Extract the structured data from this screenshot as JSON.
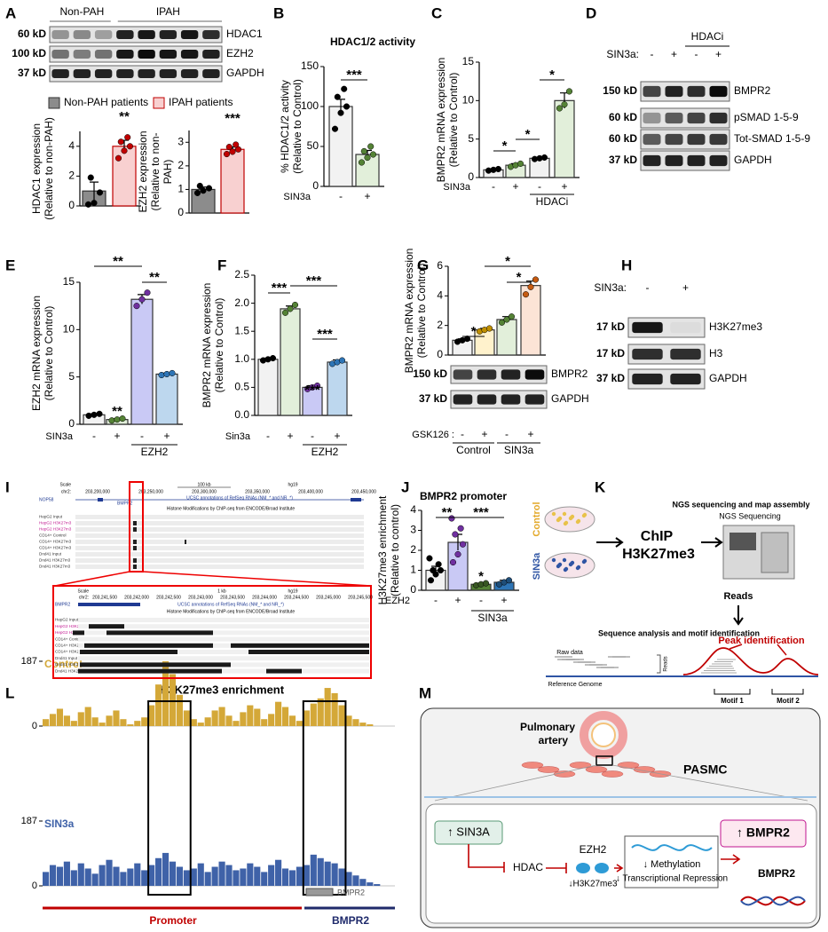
{
  "panel_letters": [
    "A",
    "B",
    "C",
    "D",
    "E",
    "F",
    "G",
    "H",
    "I",
    "J",
    "K",
    "L",
    "M"
  ],
  "chart_data": [
    {
      "type": "bar",
      "ylabel": [
        "HDAC1 expression",
        "(Relative to non-PAH)"
      ],
      "values": [
        1.0,
        4.0
      ],
      "errors": [
        0.6,
        0.4
      ],
      "points": [
        [
          0.1,
          0.2,
          0.9,
          1.9
        ],
        [
          3.2,
          3.7,
          4.0,
          4.3,
          4.6
        ]
      ],
      "colors": [
        "#8c8c8c",
        "#f8d0d0"
      ],
      "edge_colors": [
        "#333333",
        "#c00000"
      ],
      "point_colors": [
        "#000000",
        "#c00000"
      ],
      "ylim": [
        0,
        5
      ],
      "yticks": [
        0,
        2,
        4
      ],
      "annotations": [
        "**"
      ],
      "legend": [
        "Non-PAH patients",
        "IPAH patients"
      ]
    },
    {
      "type": "bar",
      "ylabel": [
        "EZH2 expression",
        "(Relative to non-",
        "PAH)"
      ],
      "values": [
        1.0,
        2.7
      ],
      "errors": [
        0.1,
        0.1
      ],
      "points": [
        [
          0.85,
          0.95,
          1.05,
          1.15
        ],
        [
          2.5,
          2.6,
          2.7,
          2.8,
          2.9
        ]
      ],
      "colors": [
        "#8c8c8c",
        "#f8d0d0"
      ],
      "edge_colors": [
        "#333333",
        "#c00000"
      ],
      "point_colors": [
        "#000000",
        "#c00000"
      ],
      "ylim": [
        0,
        3.5
      ],
      "yticks": [
        0,
        1,
        2,
        3
      ],
      "annotations": [
        "***"
      ]
    },
    {
      "type": "bar",
      "title": "HDAC1/2 activity",
      "ylabel": [
        "% HDAC1/2 activity",
        "(Relative to Control)"
      ],
      "xlabel": "SIN3a",
      "categories": [
        "-",
        "+"
      ],
      "values": [
        100,
        40
      ],
      "errors": [
        9,
        5
      ],
      "points": [
        [
          72,
          92,
          100,
          112,
          122
        ],
        [
          30,
          36,
          40,
          44,
          50
        ]
      ],
      "colors": [
        "#f2f2f2",
        "#e2efda"
      ],
      "edge_colors": [
        "#333333",
        "#333333"
      ],
      "point_colors": [
        "#000000",
        "#548235"
      ],
      "ylim": [
        0,
        150
      ],
      "yticks": [
        0,
        50,
        100,
        150
      ],
      "annotations": [
        "***"
      ]
    },
    {
      "type": "bar",
      "ylabel": [
        "BMPR2 mRNA expression",
        "(Relative to Control)"
      ],
      "xlabel": "SIN3a",
      "categories": [
        "-",
        "+",
        "-",
        "+"
      ],
      "group": "HDACi",
      "values": [
        1.0,
        1.6,
        2.5,
        10.0
      ],
      "errors": [
        0.1,
        0.2,
        0.1,
        1.0
      ],
      "points": [
        [
          0.9,
          1.0,
          1.1
        ],
        [
          1.4,
          1.6,
          1.8
        ],
        [
          2.4,
          2.5,
          2.6
        ],
        [
          9.0,
          9.5,
          11.2
        ]
      ],
      "colors": [
        "#f2f2f2",
        "#e2efda",
        "#f2f2f2",
        "#e2efda"
      ],
      "edge_colors": [
        "#333333",
        "#333333",
        "#333333",
        "#333333"
      ],
      "point_colors": [
        "#000000",
        "#548235",
        "#000000",
        "#548235"
      ],
      "ylim": [
        0,
        15
      ],
      "yticks": [
        0,
        5,
        10,
        15
      ],
      "annotations": [
        "*",
        "*",
        "*"
      ]
    },
    {
      "type": "bar",
      "ylabel": [
        "EZH2 mRNA expression",
        "(Relative to Control)"
      ],
      "xlabel": "SIN3a",
      "categories": [
        "-",
        "+",
        "-",
        "+"
      ],
      "group": "EZH2",
      "values": [
        1.0,
        0.5,
        13.2,
        5.3
      ],
      "errors": [
        0.1,
        0.1,
        0.5,
        0.1
      ],
      "points": [
        [
          0.9,
          1.0,
          1.1
        ],
        [
          0.4,
          0.5,
          0.6
        ],
        [
          12.5,
          13.2,
          13.9
        ],
        [
          5.2,
          5.3,
          5.4
        ]
      ],
      "colors": [
        "#f2f2f2",
        "#e2efda",
        "#c9c9f5",
        "#bdd7ee"
      ],
      "edge_colors": [
        "#333333",
        "#333333",
        "#333333",
        "#333333"
      ],
      "point_colors": [
        "#000000",
        "#548235",
        "#7030a0",
        "#2e75b6"
      ],
      "ylim": [
        0,
        15
      ],
      "yticks": [
        0,
        5,
        10,
        15
      ],
      "annotations": [
        "**",
        "**",
        "**"
      ]
    },
    {
      "type": "bar",
      "ylabel": [
        "BMPR2 mRNA expression",
        "(Relative to Control)"
      ],
      "xlabel": "Sin3a",
      "categories": [
        "-",
        "+",
        "-",
        "+"
      ],
      "group": "EZH2",
      "values": [
        1.0,
        1.9,
        0.5,
        0.95
      ],
      "errors": [
        0.02,
        0.05,
        0.03,
        0.04
      ],
      "points": [
        [
          0.98,
          1.0,
          1.02
        ],
        [
          1.83,
          1.9,
          1.97
        ],
        [
          0.47,
          0.5,
          0.53
        ],
        [
          0.92,
          0.95,
          0.98
        ]
      ],
      "colors": [
        "#f2f2f2",
        "#e2efda",
        "#c9c9f5",
        "#bdd7ee"
      ],
      "edge_colors": [
        "#333333",
        "#333333",
        "#333333",
        "#333333"
      ],
      "point_colors": [
        "#000000",
        "#548235",
        "#7030a0",
        "#2e75b6"
      ],
      "ylim": [
        0,
        2.5
      ],
      "yticks": [
        {
          "value": 0,
          "label": "0.0"
        },
        0.5,
        {
          "value": 1,
          "label": "1.0"
        },
        1.5,
        {
          "value": 2,
          "label": "2.0"
        },
        2.5
      ],
      "annotations": [
        "***",
        "***",
        "***",
        "***"
      ]
    },
    {
      "type": "bar",
      "ylabel": [
        "BMPR2 mRNA expression",
        "(Relative to Control)"
      ],
      "xlabel": "GSK126 :",
      "categories": [
        "-",
        "+",
        "-",
        "+"
      ],
      "groups": [
        "Control",
        "SIN3a"
      ],
      "values": [
        1.0,
        1.7,
        2.4,
        4.7
      ],
      "errors": [
        0.1,
        0.1,
        0.2,
        0.3
      ],
      "points": [
        [
          0.9,
          1.0,
          1.1
        ],
        [
          1.6,
          1.7,
          1.8
        ],
        [
          2.2,
          2.4,
          2.6
        ],
        [
          4.1,
          4.6,
          5.1
        ]
      ],
      "colors": [
        "#f2f2f2",
        "#fff2cc",
        "#e2efda",
        "#fce4d6"
      ],
      "edge_colors": [
        "#333333",
        "#333333",
        "#333333",
        "#333333"
      ],
      "point_colors": [
        "#000000",
        "#bf8f00",
        "#548235",
        "#c55a11"
      ],
      "ylim": [
        0,
        6
      ],
      "yticks": [
        0,
        2,
        4,
        6
      ],
      "annotations": [
        "*",
        "*",
        "*"
      ]
    },
    {
      "type": "bar",
      "title": "BMPR2 promoter",
      "ylabel": [
        "H3K27me3 enrichment",
        "(Relative to control)"
      ],
      "xlabel": "EZH2",
      "categories": [
        "-",
        "+",
        "-",
        "+"
      ],
      "group": "SIN3a",
      "values": [
        1.0,
        2.4,
        0.3,
        0.4
      ],
      "errors": [
        0.2,
        0.4,
        0.05,
        0.1
      ],
      "points": [
        [
          0.5,
          0.8,
          1.0,
          1.0,
          1.3,
          1.6
        ],
        [
          1.4,
          1.8,
          2.3,
          2.8,
          3.1,
          3.6
        ],
        [
          0.25,
          0.3,
          0.35
        ],
        [
          0.3,
          0.4,
          0.5
        ]
      ],
      "colors": [
        "#f2f2f2",
        "#c9c9f5",
        "#548235",
        "#2e75b6"
      ],
      "edge_colors": [
        "#333333",
        "#333333",
        "#333333",
        "#333333"
      ],
      "point_colors": [
        "#000000",
        "#7030a0",
        "#385723",
        "#1f4e79"
      ],
      "ylim": [
        0,
        4
      ],
      "yticks": [
        0,
        1,
        2,
        3,
        4
      ],
      "annotations": [
        "**",
        "***",
        "*"
      ]
    },
    {
      "type": "coverage",
      "title": "H3K27me3 enrichment",
      "ylim": [
        0,
        187
      ],
      "yticks": [
        0,
        187
      ],
      "series": [
        {
          "name": "Control",
          "color": "#d4a838",
          "values": [
            20,
            35,
            50,
            30,
            15,
            40,
            55,
            25,
            10,
            30,
            45,
            20,
            5,
            15,
            25,
            60,
            120,
            187,
            150,
            90,
            45,
            20,
            10,
            25,
            45,
            55,
            30,
            15,
            40,
            60,
            50,
            20,
            35,
            70,
            55,
            30,
            15,
            45,
            65,
            80,
            110,
            95,
            60,
            30,
            20,
            10,
            5,
            0,
            0,
            0
          ]
        },
        {
          "name": "SIN3a",
          "color": "#3f62a8",
          "values": [
            40,
            60,
            55,
            70,
            45,
            65,
            50,
            35,
            60,
            75,
            55,
            40,
            50,
            65,
            45,
            60,
            80,
            95,
            70,
            55,
            45,
            50,
            65,
            40,
            55,
            70,
            60,
            45,
            50,
            65,
            55,
            40,
            60,
            75,
            50,
            45,
            55,
            60,
            90,
            80,
            70,
            65,
            50,
            40,
            30,
            20,
            10,
            5,
            0,
            0
          ]
        }
      ],
      "regions": [
        "Promoter",
        "BMPR2"
      ],
      "gene": "BMPR2"
    }
  ],
  "blots": {
    "A": {
      "groups": [
        "Non-PAH",
        "IPAH"
      ],
      "rows": [
        {
          "size": "60 kD",
          "label": "HDAC1"
        },
        {
          "size": "100 kD",
          "label": "EZH2"
        },
        {
          "size": "37 kD",
          "label": "GAPDH"
        }
      ]
    },
    "D": {
      "treatment": "SIN3a:",
      "lanes": [
        "-",
        "+",
        "-",
        "+"
      ],
      "group": "HDACi",
      "rows": [
        {
          "size": "150 kD",
          "label": "BMPR2"
        },
        {
          "size": "60 kD",
          "label": "pSMAD 1-5-9"
        },
        {
          "size": "60 kD",
          "label": "Tot-SMAD 1-5-9"
        },
        {
          "size": "37 kD",
          "label": "GAPDH"
        }
      ]
    },
    "G": {
      "rows": [
        {
          "size": "150 kD",
          "label": "BMPR2"
        },
        {
          "size": "37 kD",
          "label": "GAPDH"
        }
      ]
    },
    "H": {
      "treatment": "SIN3a:",
      "lanes": [
        "-",
        "+"
      ],
      "rows": [
        {
          "size": "17 kD",
          "label": "H3K27me3"
        },
        {
          "size": "17 kD",
          "label": "H3"
        },
        {
          "size": "37 kD",
          "label": "GAPDH"
        }
      ]
    }
  },
  "genome_browser": {
    "top": {
      "scale": "Scale",
      "chr": "chr2:",
      "scale_bar": "100 kb",
      "assembly": "hg19",
      "coords": [
        "203,200,000",
        "203,250,000",
        "203,300,000",
        "203,350,000",
        "203,400,000",
        "203,450,000"
      ],
      "genes": [
        "NOP58",
        "BMPR2"
      ],
      "refseq": "UCSC annotations of RefSeq RNAs (NM_* and NR_*)",
      "histone": "Histone Modifications by ChIP-seq from ENCODE/Broad Institute",
      "tracks": [
        "HepG2 Input",
        "HepG2 H3K27m3",
        "HepG2 H3K27m3",
        "CD14+ Control",
        "CD14+ H3K27m3",
        "CD14+ H3K27m3",
        "Dnd41 Input",
        "Dnd41 H3K27m3",
        "Dnd41 H3K27m3"
      ]
    },
    "bottom": {
      "scale": "Scale",
      "chr": "chr2:",
      "scale_bar": "1 kb",
      "assembly": "hg19",
      "coords": [
        "203,241,500",
        "203,242,000",
        "203,242,500",
        "203,243,000",
        "203,243,500",
        "203,244,000",
        "203,244,500",
        "203,245,000",
        "203,245,500"
      ],
      "gene": "BMPR2",
      "refseq": "UCSC annotations of RefSeq RNAs (NM_* and NR_*)",
      "histone": "Histone Modifications by ChIP-seq from ENCODE/Broad Institute",
      "tracks": [
        "HepG2 Input",
        "HepG2 H3K27m3",
        "HepG2 H3K27m3",
        "CD14+ Control",
        "CD14+ H3K27m3",
        "CD14+ H3K27m3",
        "Dnd41 Input",
        "Dnd41 H3K27m3",
        "Dnd41 H3K27m3"
      ]
    }
  },
  "schematic_k": {
    "conditions": [
      "Control",
      "SIN3a"
    ],
    "method": [
      "ChIP",
      "H3K27me3"
    ],
    "ngs_title": "NGS sequencing and map assembly",
    "ngs_label": "NGS Sequencing",
    "reads": "Reads",
    "analysis": "Sequence analysis and motif identification",
    "raw_data": "Raw data",
    "reads_axis": "Reads",
    "reference": "Reference Genome",
    "peak": "Peak identification",
    "motifs": [
      "Motif 1",
      "Motif 2"
    ]
  },
  "model_m": {
    "pulmonary_artery": [
      "Pulmonary",
      "artery"
    ],
    "pasmc": "PASMC",
    "sin3a": "↑ SIN3A",
    "hdac": "HDAC",
    "ezh2": "EZH2",
    "h3k27me3": "↓H3K27me3",
    "methylation": "↓ Methylation",
    "repression": "↓ Transcriptional Repression",
    "bmpr2_up": "↑ BMPR2",
    "bmpr2": "BMPR2"
  }
}
